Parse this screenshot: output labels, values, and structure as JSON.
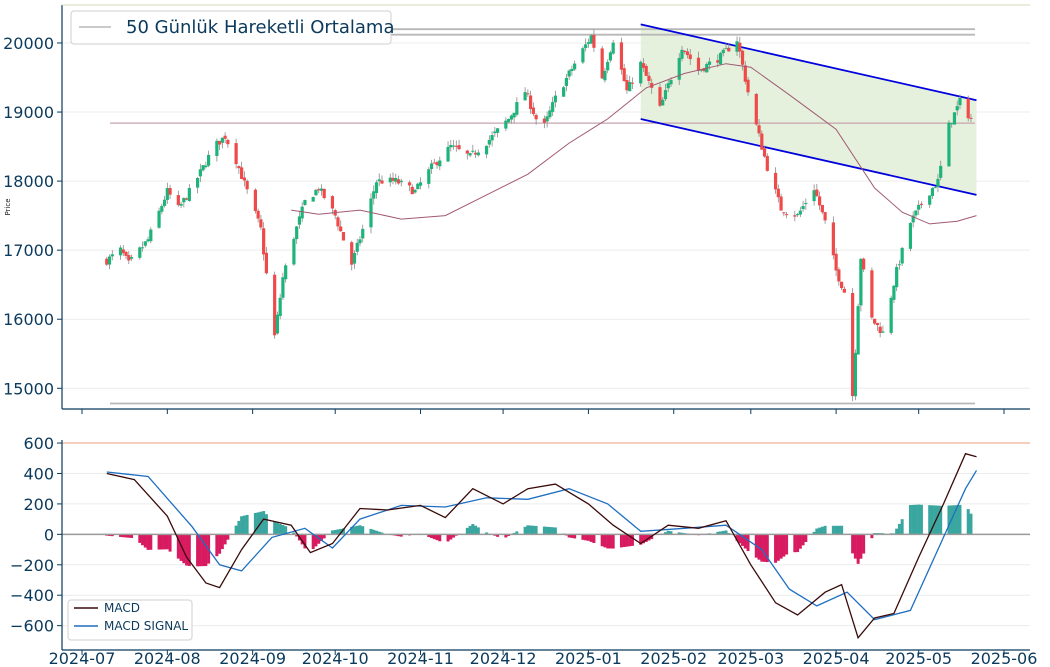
{
  "chart_data": [
    {
      "type": "candlestick",
      "title": "",
      "xlabel": "",
      "ylabel": "Price",
      "ylim": [
        14700,
        20550
      ],
      "yticks": [
        15000,
        16000,
        17000,
        18000,
        19000,
        20000
      ],
      "legend": {
        "label": "50 Günlük Hareketli Ortalama",
        "placement": "top-left"
      },
      "colors": {
        "up": "#1db37a",
        "down": "#ef4a4a",
        "ma": "#a05a73",
        "channel": "#0000dd",
        "channel_fill": "#e2f0d9",
        "hline": "#b8b8b8",
        "hline_pink": "#c9a3ad"
      },
      "horizontal_levels": [
        20200,
        20120,
        18840,
        14780
      ],
      "channel": {
        "start": "2025-01-20",
        "end": "2025-05-22",
        "upper": [
          20270,
          19170
        ],
        "lower": [
          18900,
          17800
        ]
      },
      "control_points": [
        [
          "2024-07-10",
          16850
        ],
        [
          "2024-07-15",
          17000
        ],
        [
          "2024-07-18",
          16800
        ],
        [
          "2024-07-25",
          17150
        ],
        [
          "2024-08-01",
          17850
        ],
        [
          "2024-08-05",
          17600
        ],
        [
          "2024-08-10",
          17900
        ],
        [
          "2024-08-18",
          18500
        ],
        [
          "2024-08-22",
          18650
        ],
        [
          "2024-08-26",
          18300
        ],
        [
          "2024-08-30",
          17850
        ],
        [
          "2024-09-04",
          17300
        ],
        [
          "2024-09-06",
          16650
        ],
        [
          "2024-09-09",
          15750
        ],
        [
          "2024-09-12",
          16600
        ],
        [
          "2024-09-16",
          17200
        ],
        [
          "2024-09-20",
          17700
        ],
        [
          "2024-09-25",
          17900
        ],
        [
          "2024-10-01",
          17500
        ],
        [
          "2024-10-07",
          16800
        ],
        [
          "2024-10-11",
          17300
        ],
        [
          "2024-10-16",
          18000
        ],
        [
          "2024-10-23",
          18000
        ],
        [
          "2024-10-30",
          17850
        ],
        [
          "2024-11-05",
          18200
        ],
        [
          "2024-11-12",
          18500
        ],
        [
          "2024-11-19",
          18350
        ],
        [
          "2024-11-26",
          18600
        ],
        [
          "2024-12-03",
          18900
        ],
        [
          "2024-12-09",
          19300
        ],
        [
          "2024-12-15",
          18700
        ],
        [
          "2024-12-20",
          19200
        ],
        [
          "2024-12-27",
          19700
        ],
        [
          "2025-01-02",
          20100
        ],
        [
          "2025-01-06",
          19500
        ],
        [
          "2025-01-10",
          20050
        ],
        [
          "2025-01-15",
          19300
        ],
        [
          "2025-01-20",
          19700
        ],
        [
          "2025-01-27",
          19050
        ],
        [
          "2025-02-04",
          19950
        ],
        [
          "2025-02-10",
          19600
        ],
        [
          "2025-02-18",
          19800
        ],
        [
          "2025-02-24",
          20050
        ],
        [
          "2025-03-01",
          19100
        ],
        [
          "2025-03-07",
          18200
        ],
        [
          "2025-03-12",
          17600
        ],
        [
          "2025-03-18",
          17500
        ],
        [
          "2025-03-24",
          17900
        ],
        [
          "2025-03-28",
          17400
        ],
        [
          "2025-04-01",
          16700
        ],
        [
          "2025-04-04",
          16400
        ],
        [
          "2025-04-07",
          14900
        ],
        [
          "2025-04-10",
          16900
        ],
        [
          "2025-04-14",
          16000
        ],
        [
          "2025-04-18",
          15800
        ],
        [
          "2025-04-23",
          16700
        ],
        [
          "2025-04-28",
          17400
        ],
        [
          "2025-05-04",
          17800
        ],
        [
          "2025-05-08",
          18000
        ],
        [
          "2025-05-12",
          18800
        ],
        [
          "2025-05-16",
          19150
        ],
        [
          "2025-05-20",
          18900
        ]
      ],
      "ma_points": [
        [
          "2024-09-15",
          17580
        ],
        [
          "2024-09-25",
          17520
        ],
        [
          "2024-10-10",
          17580
        ],
        [
          "2024-10-25",
          17450
        ],
        [
          "2024-11-10",
          17500
        ],
        [
          "2024-11-25",
          17800
        ],
        [
          "2024-12-10",
          18100
        ],
        [
          "2024-12-25",
          18550
        ],
        [
          "2025-01-08",
          18900
        ],
        [
          "2025-01-22",
          19350
        ],
        [
          "2025-02-05",
          19560
        ],
        [
          "2025-02-20",
          19700
        ],
        [
          "2025-03-01",
          19650
        ],
        [
          "2025-03-15",
          19250
        ],
        [
          "2025-04-01",
          18750
        ],
        [
          "2025-04-15",
          17900
        ],
        [
          "2025-04-25",
          17550
        ],
        [
          "2025-05-05",
          17380
        ],
        [
          "2025-05-15",
          17420
        ],
        [
          "2025-05-22",
          17500
        ]
      ]
    },
    {
      "type": "line",
      "title": "",
      "xlabel": "",
      "ylabel": "",
      "ylim": [
        -760,
        620
      ],
      "yticks": [
        600,
        400,
        200,
        0,
        -200,
        -400,
        -600
      ],
      "hline_top": 600,
      "legend_placement": "bottom-left",
      "x_ticks": [
        "2024-07",
        "2024-08",
        "2024-09",
        "2024-10",
        "2024-11",
        "2024-12",
        "2025-01",
        "2025-02",
        "2025-03",
        "2025-04",
        "2025-05",
        "2025-06"
      ],
      "series": [
        {
          "name": "MACD",
          "color": "#3a0a0a",
          "points": [
            [
              "2024-07-10",
              400
            ],
            [
              "2024-07-20",
              360
            ],
            [
              "2024-08-01",
              120
            ],
            [
              "2024-08-08",
              -150
            ],
            [
              "2024-08-15",
              -320
            ],
            [
              "2024-08-20",
              -350
            ],
            [
              "2024-08-28",
              -100
            ],
            [
              "2024-09-05",
              100
            ],
            [
              "2024-09-15",
              60
            ],
            [
              "2024-09-22",
              -120
            ],
            [
              "2024-09-30",
              -60
            ],
            [
              "2024-10-10",
              170
            ],
            [
              "2024-10-20",
              160
            ],
            [
              "2024-11-01",
              190
            ],
            [
              "2024-11-10",
              110
            ],
            [
              "2024-11-20",
              300
            ],
            [
              "2024-12-01",
              200
            ],
            [
              "2024-12-10",
              300
            ],
            [
              "2024-12-20",
              330
            ],
            [
              "2025-01-01",
              200
            ],
            [
              "2025-01-10",
              60
            ],
            [
              "2025-01-20",
              -60
            ],
            [
              "2025-01-30",
              60
            ],
            [
              "2025-02-10",
              40
            ],
            [
              "2025-02-20",
              90
            ],
            [
              "2025-03-01",
              -200
            ],
            [
              "2025-03-10",
              -450
            ],
            [
              "2025-03-18",
              -530
            ],
            [
              "2025-03-28",
              -380
            ],
            [
              "2025-04-03",
              -330
            ],
            [
              "2025-04-09",
              -680
            ],
            [
              "2025-04-15",
              -550
            ],
            [
              "2025-04-22",
              -520
            ],
            [
              "2025-05-01",
              -150
            ],
            [
              "2025-05-10",
              200
            ],
            [
              "2025-05-18",
              530
            ],
            [
              "2025-05-22",
              510
            ]
          ]
        },
        {
          "name": "MACD SIGNAL",
          "color": "#1f6fc2",
          "points": [
            [
              "2024-07-10",
              410
            ],
            [
              "2024-07-25",
              380
            ],
            [
              "2024-08-10",
              50
            ],
            [
              "2024-08-20",
              -200
            ],
            [
              "2024-08-28",
              -240
            ],
            [
              "2024-09-08",
              -20
            ],
            [
              "2024-09-20",
              40
            ],
            [
              "2024-09-30",
              -90
            ],
            [
              "2024-10-10",
              100
            ],
            [
              "2024-10-25",
              190
            ],
            [
              "2024-11-10",
              180
            ],
            [
              "2024-11-25",
              240
            ],
            [
              "2024-12-10",
              230
            ],
            [
              "2024-12-25",
              300
            ],
            [
              "2025-01-08",
              200
            ],
            [
              "2025-01-20",
              20
            ],
            [
              "2025-02-05",
              40
            ],
            [
              "2025-02-20",
              60
            ],
            [
              "2025-03-05",
              -100
            ],
            [
              "2025-03-15",
              -360
            ],
            [
              "2025-03-25",
              -470
            ],
            [
              "2025-04-05",
              -380
            ],
            [
              "2025-04-15",
              -560
            ],
            [
              "2025-04-28",
              -500
            ],
            [
              "2025-05-08",
              -100
            ],
            [
              "2025-05-18",
              300
            ],
            [
              "2025-05-22",
              420
            ]
          ]
        },
        {
          "name": "histogram",
          "colors": {
            "positive": "#3aa6a0",
            "negative": "#d81b60"
          }
        }
      ]
    }
  ]
}
